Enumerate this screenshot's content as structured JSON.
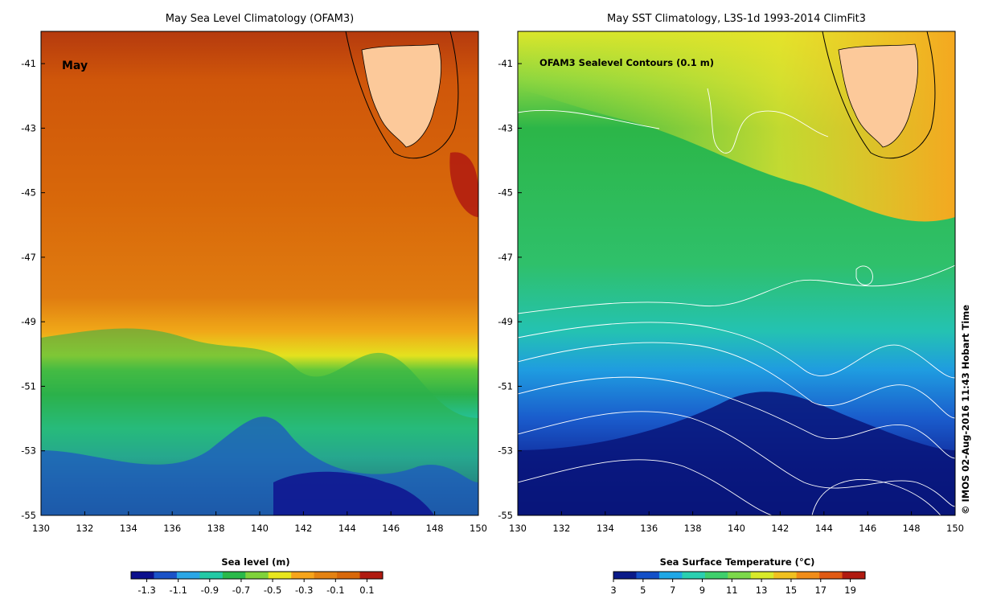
{
  "chart_data": [
    {
      "type": "heatmap",
      "title": "May Sea Level Climatology (OFAM3)",
      "annotation": "May",
      "colorbar_label": "Sea level (m)",
      "colorbar_ticks": [
        "-1.3",
        "-1.1",
        "-0.9",
        "-0.7",
        "-0.5",
        "-0.3",
        "-0.1",
        "0.1"
      ],
      "colorbar_range": [
        -1.4,
        0.2
      ],
      "x_ticks": [
        "130",
        "132",
        "134",
        "136",
        "138",
        "140",
        "142",
        "144",
        "146",
        "148",
        "150"
      ],
      "y_ticks": [
        "-41",
        "-43",
        "-45",
        "-47",
        "-49",
        "-51",
        "-53",
        "-55"
      ],
      "xlim": [
        130,
        150
      ],
      "ylim": [
        -55,
        -40
      ]
    },
    {
      "type": "heatmap",
      "title": "May SST Climatology, L3S-1d 1993-2014 ClimFit3",
      "annotation": "OFAM3 Sealevel Contours (0.1 m)",
      "colorbar_label": "Sea Surface Temperature (°C)",
      "colorbar_ticks": [
        "3",
        "5",
        "7",
        "9",
        "11",
        "13",
        "15",
        "17",
        "19"
      ],
      "colorbar_range": [
        3,
        20
      ],
      "x_ticks": [
        "130",
        "132",
        "134",
        "136",
        "138",
        "140",
        "142",
        "144",
        "146",
        "148",
        "150"
      ],
      "y_ticks": [
        "-41",
        "-43",
        "-45",
        "-47",
        "-49",
        "-51",
        "-53",
        "-55"
      ],
      "xlim": [
        130,
        150
      ],
      "ylim": [
        -55,
        -40
      ]
    }
  ],
  "credit": "© IMOS 02-Aug-2016 11:43 Hobart Time",
  "colors": {
    "land": "#fcc99a",
    "contour": "#ffffff",
    "sea_level_scale": [
      "#0c0f8c",
      "#1a52c8",
      "#2aa6e6",
      "#23c9a5",
      "#2ab94a",
      "#7fd23a",
      "#e8e61e",
      "#f6a41a",
      "#e48212",
      "#d8680a",
      "#b01a10"
    ],
    "sst_scale": [
      "#0a1a88",
      "#1450c8",
      "#1fa7e6",
      "#2acfb0",
      "#3fcf6c",
      "#7cd84a",
      "#d8ea2a",
      "#f0c020",
      "#f08c18",
      "#e05a14",
      "#b01a10"
    ]
  }
}
